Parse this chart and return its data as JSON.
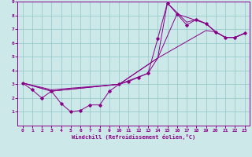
{
  "xlabel": "Windchill (Refroidissement éolien,°C)",
  "bg_color": "#cce8e8",
  "line_color": "#880088",
  "grid_color": "#99cccc",
  "xlim": [
    -0.5,
    23.5
  ],
  "ylim": [
    0,
    9
  ],
  "xticks": [
    0,
    1,
    2,
    3,
    4,
    5,
    6,
    7,
    8,
    9,
    10,
    11,
    12,
    13,
    14,
    15,
    16,
    17,
    18,
    19,
    20,
    21,
    22,
    23
  ],
  "yticks": [
    1,
    2,
    3,
    4,
    5,
    6,
    7,
    8,
    9
  ],
  "line1": {
    "x": [
      0,
      1,
      2,
      3,
      4,
      5,
      6,
      7,
      8,
      9,
      10,
      11,
      12,
      13,
      14,
      15,
      16,
      17,
      18,
      19,
      20,
      21,
      22,
      23
    ],
    "y": [
      3.1,
      2.6,
      2.0,
      2.5,
      1.6,
      1.0,
      1.1,
      1.5,
      1.5,
      2.5,
      3.0,
      3.2,
      3.5,
      3.8,
      6.3,
      8.9,
      8.1,
      7.3,
      7.7,
      7.4,
      6.8,
      6.4,
      6.4,
      6.7
    ]
  },
  "line2": {
    "x": [
      0,
      3,
      10,
      13,
      14,
      19,
      20,
      21,
      22,
      23
    ],
    "y": [
      3.1,
      2.6,
      3.0,
      3.8,
      4.9,
      6.9,
      6.8,
      6.4,
      6.4,
      6.7
    ]
  },
  "line3": {
    "x": [
      0,
      3,
      10,
      14,
      16,
      19,
      20,
      21,
      22,
      23
    ],
    "y": [
      3.1,
      2.5,
      3.0,
      4.9,
      8.1,
      7.4,
      6.8,
      6.4,
      6.4,
      6.7
    ]
  },
  "line4": {
    "x": [
      0,
      3,
      10,
      14,
      15,
      17,
      18,
      19,
      20,
      21,
      22,
      23
    ],
    "y": [
      3.1,
      2.5,
      3.0,
      4.9,
      8.9,
      7.5,
      7.7,
      7.4,
      6.8,
      6.4,
      6.4,
      6.7
    ]
  }
}
